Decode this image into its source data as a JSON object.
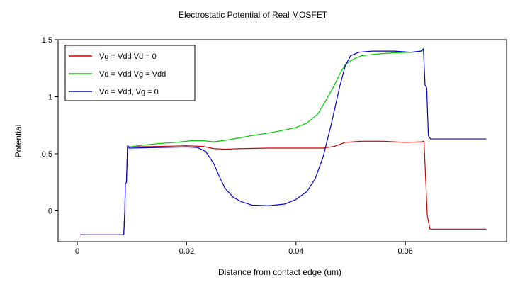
{
  "chart_data": {
    "type": "line",
    "title": "Electrostatic Potential of Real MOSFET",
    "xlabel": "Distance from contact edge (um)",
    "ylabel": "Potential",
    "xlim": [
      -0.0035,
      0.0785
    ],
    "ylim": [
      -0.27,
      1.5
    ],
    "x_ticks": [
      0,
      0.02,
      0.04,
      0.06
    ],
    "x_tick_labels": [
      "0",
      "0.02",
      "0.04",
      "0.06"
    ],
    "y_ticks": [
      0,
      0.5,
      1,
      1.5
    ],
    "y_tick_labels": [
      "0",
      "0.5",
      "1",
      "1.5"
    ],
    "grid": false,
    "legend_position": "top-left",
    "series": [
      {
        "name": "Vg = Vdd Vd = 0",
        "color": "#cc0000",
        "points": [
          [
            0.0005,
            -0.21
          ],
          [
            0.0085,
            -0.21
          ],
          [
            0.0087,
            0.0
          ],
          [
            0.0088,
            0.24
          ],
          [
            0.009,
            0.25
          ],
          [
            0.0092,
            0.57
          ],
          [
            0.0095,
            0.56
          ],
          [
            0.015,
            0.565
          ],
          [
            0.02,
            0.57
          ],
          [
            0.023,
            0.565
          ],
          [
            0.025,
            0.545
          ],
          [
            0.027,
            0.54
          ],
          [
            0.03,
            0.545
          ],
          [
            0.035,
            0.55
          ],
          [
            0.045,
            0.55
          ],
          [
            0.047,
            0.565
          ],
          [
            0.049,
            0.6
          ],
          [
            0.052,
            0.61
          ],
          [
            0.056,
            0.61
          ],
          [
            0.06,
            0.6
          ],
          [
            0.063,
            0.605
          ],
          [
            0.0634,
            0.61
          ],
          [
            0.0638,
            0.19
          ],
          [
            0.064,
            -0.04
          ],
          [
            0.0645,
            -0.16
          ],
          [
            0.0748,
            -0.16
          ]
        ]
      },
      {
        "name": "Vd = Vdd Vg = Vdd",
        "color": "#00cc00",
        "points": [
          [
            0.0095,
            0.56
          ],
          [
            0.012,
            0.575
          ],
          [
            0.015,
            0.59
          ],
          [
            0.018,
            0.6
          ],
          [
            0.021,
            0.615
          ],
          [
            0.023,
            0.615
          ],
          [
            0.025,
            0.605
          ],
          [
            0.028,
            0.625
          ],
          [
            0.032,
            0.66
          ],
          [
            0.036,
            0.69
          ],
          [
            0.04,
            0.73
          ],
          [
            0.042,
            0.77
          ],
          [
            0.044,
            0.85
          ],
          [
            0.0455,
            0.97
          ],
          [
            0.047,
            1.1
          ],
          [
            0.048,
            1.2
          ],
          [
            0.049,
            1.28
          ],
          [
            0.0505,
            1.33
          ],
          [
            0.052,
            1.36
          ],
          [
            0.055,
            1.375
          ],
          [
            0.058,
            1.385
          ],
          [
            0.0615,
            1.39
          ],
          [
            0.063,
            1.4
          ],
          [
            0.0634,
            1.41
          ]
        ]
      },
      {
        "name": "Vd = Vdd, Vg = 0",
        "color": "#0000cc",
        "points": [
          [
            0.0005,
            -0.21
          ],
          [
            0.0085,
            -0.21
          ],
          [
            0.0087,
            0.0
          ],
          [
            0.0088,
            0.24
          ],
          [
            0.009,
            0.25
          ],
          [
            0.0092,
            0.57
          ],
          [
            0.0095,
            0.55
          ],
          [
            0.015,
            0.555
          ],
          [
            0.02,
            0.56
          ],
          [
            0.022,
            0.555
          ],
          [
            0.0235,
            0.52
          ],
          [
            0.025,
            0.41
          ],
          [
            0.026,
            0.3
          ],
          [
            0.027,
            0.2
          ],
          [
            0.0285,
            0.12
          ],
          [
            0.03,
            0.08
          ],
          [
            0.032,
            0.05
          ],
          [
            0.035,
            0.045
          ],
          [
            0.038,
            0.06
          ],
          [
            0.04,
            0.1
          ],
          [
            0.042,
            0.17
          ],
          [
            0.0435,
            0.28
          ],
          [
            0.045,
            0.48
          ],
          [
            0.0465,
            0.77
          ],
          [
            0.048,
            1.09
          ],
          [
            0.049,
            1.27
          ],
          [
            0.05,
            1.36
          ],
          [
            0.0515,
            1.39
          ],
          [
            0.054,
            1.4
          ],
          [
            0.058,
            1.4
          ],
          [
            0.061,
            1.39
          ],
          [
            0.0628,
            1.4
          ],
          [
            0.0633,
            1.42
          ],
          [
            0.0636,
            1.1
          ],
          [
            0.0639,
            1.08
          ],
          [
            0.0642,
            0.66
          ],
          [
            0.0646,
            0.63
          ],
          [
            0.0748,
            0.63
          ]
        ]
      }
    ]
  }
}
